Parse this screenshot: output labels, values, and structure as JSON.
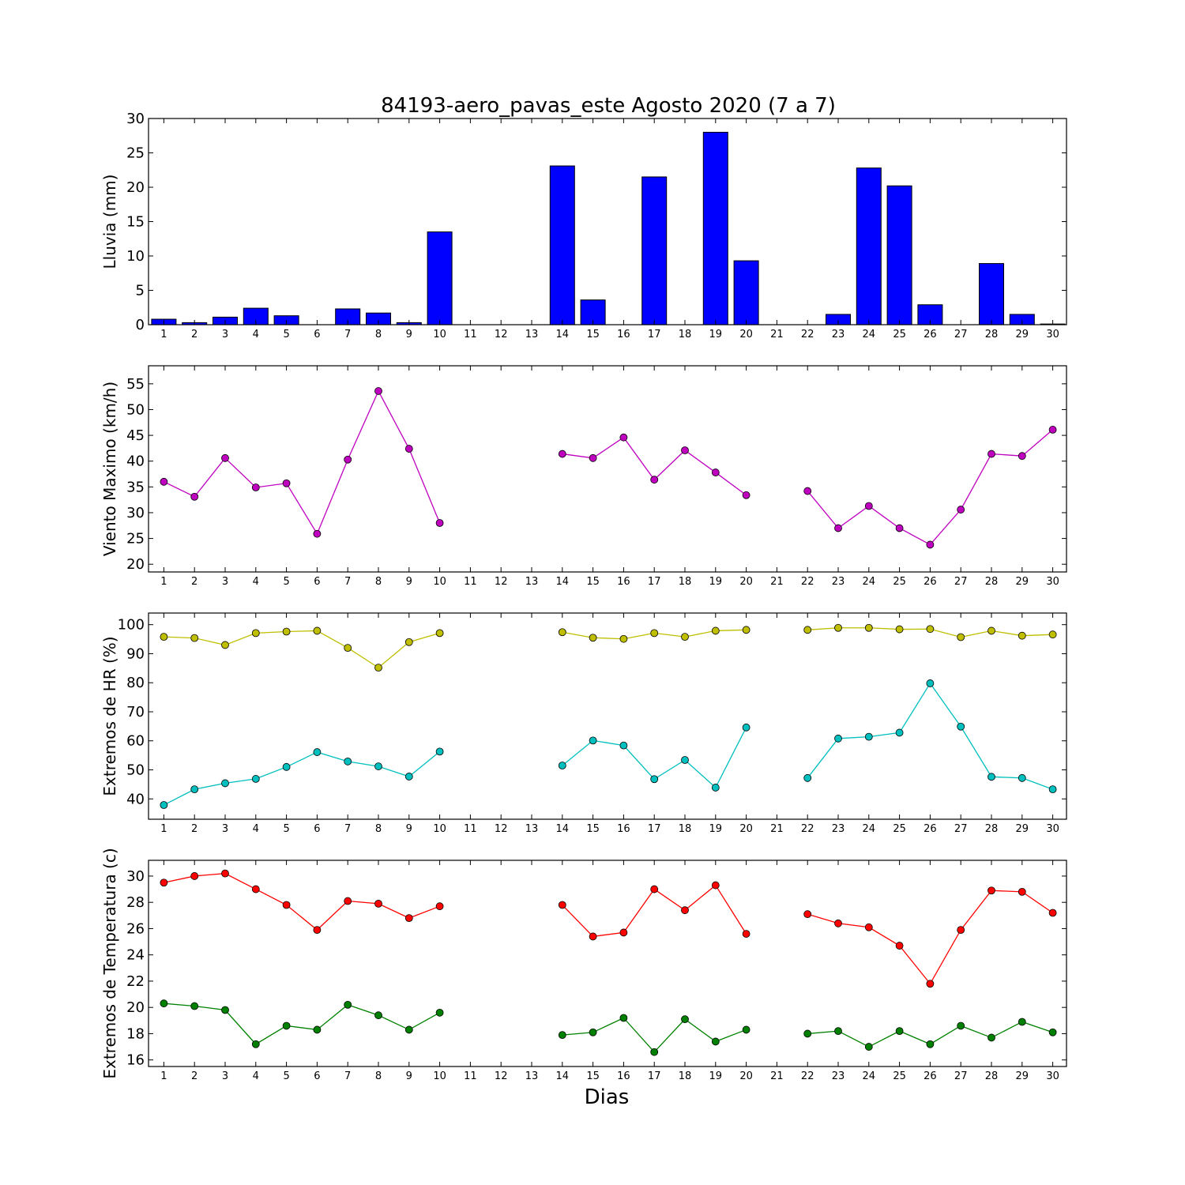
{
  "title": "84193-aero_pavas_este Agosto 2020  (7 a 7)",
  "xlabel": "Dias",
  "chart_data": [
    {
      "type": "bar",
      "ylabel": "Lluvia (mm)",
      "ylim": [
        0,
        30
      ],
      "yticks": [
        0,
        5,
        10,
        15,
        20,
        25,
        30
      ],
      "categories": [
        "1",
        "2",
        "3",
        "4",
        "5",
        "6",
        "7",
        "8",
        "9",
        "10",
        "11",
        "12",
        "13",
        "14",
        "15",
        "16",
        "17",
        "18",
        "19",
        "20",
        "21",
        "22",
        "23",
        "24",
        "25",
        "26",
        "27",
        "28",
        "29",
        "30"
      ],
      "series": [
        {
          "color": "#0000ff",
          "values": [
            0.8,
            0.3,
            1.1,
            2.4,
            1.3,
            0.0,
            2.3,
            1.7,
            0.3,
            13.5,
            0.0,
            0.0,
            0.0,
            23.1,
            3.6,
            0.0,
            21.5,
            0.0,
            28.0,
            9.3,
            0.0,
            0.0,
            1.5,
            22.8,
            20.2,
            2.9,
            0.0,
            8.9,
            1.5,
            0.1
          ]
        }
      ]
    },
    {
      "type": "line",
      "ylabel": "Viento Maximo (km/h)",
      "ylim": [
        18.5,
        58.5
      ],
      "yticks": [
        20,
        25,
        30,
        35,
        40,
        45,
        50,
        55
      ],
      "categories": [
        "1",
        "2",
        "3",
        "4",
        "5",
        "6",
        "7",
        "8",
        "9",
        "10",
        "11",
        "12",
        "13",
        "14",
        "15",
        "16",
        "17",
        "18",
        "19",
        "20",
        "21",
        "22",
        "23",
        "24",
        "25",
        "26",
        "27",
        "28",
        "29",
        "30"
      ],
      "series": [
        {
          "color": "#bf00bf",
          "values": [
            36.0,
            33.1,
            40.6,
            34.9,
            35.7,
            25.9,
            40.3,
            53.6,
            42.4,
            28.0,
            null,
            null,
            null,
            41.4,
            40.6,
            44.6,
            36.4,
            42.1,
            37.8,
            33.4,
            null,
            34.2,
            27.0,
            31.3,
            27.0,
            23.8,
            30.6,
            41.4,
            41.0,
            46.1
          ]
        }
      ]
    },
    {
      "type": "line",
      "ylabel": "Extremos de HR (%)",
      "ylim": [
        33,
        104
      ],
      "yticks": [
        40,
        50,
        60,
        70,
        80,
        90,
        100
      ],
      "categories": [
        "1",
        "2",
        "3",
        "4",
        "5",
        "6",
        "7",
        "8",
        "9",
        "10",
        "11",
        "12",
        "13",
        "14",
        "15",
        "16",
        "17",
        "18",
        "19",
        "20",
        "21",
        "22",
        "23",
        "24",
        "25",
        "26",
        "27",
        "28",
        "29",
        "30"
      ],
      "series": [
        {
          "color": "#bfbf00",
          "values": [
            95.8,
            95.4,
            93.0,
            97.1,
            97.6,
            97.9,
            92.0,
            85.2,
            94.0,
            97.1,
            null,
            null,
            null,
            97.4,
            95.5,
            95.1,
            97.1,
            95.8,
            97.9,
            98.2,
            null,
            98.2,
            98.9,
            98.9,
            98.4,
            98.5,
            95.7,
            97.9,
            96.2,
            96.6
          ]
        },
        {
          "color": "#00bfbf",
          "values": [
            37.9,
            43.3,
            45.4,
            46.9,
            51.0,
            56.1,
            52.9,
            51.2,
            47.7,
            56.3,
            null,
            null,
            null,
            51.5,
            60.1,
            58.4,
            46.8,
            53.4,
            43.9,
            64.6,
            null,
            47.2,
            60.8,
            61.4,
            62.8,
            79.8,
            64.9,
            47.6,
            47.2,
            43.3
          ]
        }
      ]
    },
    {
      "type": "line",
      "ylabel": "Extremos de Temperatura (c)",
      "ylim": [
        15.5,
        31.2
      ],
      "yticks": [
        16,
        18,
        20,
        22,
        24,
        26,
        28,
        30
      ],
      "categories": [
        "1",
        "2",
        "3",
        "4",
        "5",
        "6",
        "7",
        "8",
        "9",
        "10",
        "11",
        "12",
        "13",
        "14",
        "15",
        "16",
        "17",
        "18",
        "19",
        "20",
        "21",
        "22",
        "23",
        "24",
        "25",
        "26",
        "27",
        "28",
        "29",
        "30"
      ],
      "series": [
        {
          "color": "#ff0000",
          "values": [
            29.5,
            30.0,
            30.2,
            29.0,
            27.8,
            25.9,
            28.1,
            27.9,
            26.8,
            27.7,
            null,
            null,
            null,
            27.8,
            25.4,
            25.7,
            29.0,
            27.4,
            29.3,
            25.6,
            null,
            27.1,
            26.4,
            26.1,
            24.7,
            21.8,
            25.9,
            28.9,
            28.8,
            27.2
          ]
        },
        {
          "color": "#008000",
          "values": [
            20.3,
            20.1,
            19.8,
            17.2,
            18.6,
            18.3,
            20.2,
            19.4,
            18.3,
            19.6,
            null,
            null,
            null,
            17.9,
            18.1,
            19.2,
            16.6,
            19.1,
            17.4,
            18.3,
            null,
            18.0,
            18.2,
            17.0,
            18.2,
            17.2,
            18.6,
            17.7,
            18.9,
            18.1
          ]
        }
      ]
    }
  ]
}
